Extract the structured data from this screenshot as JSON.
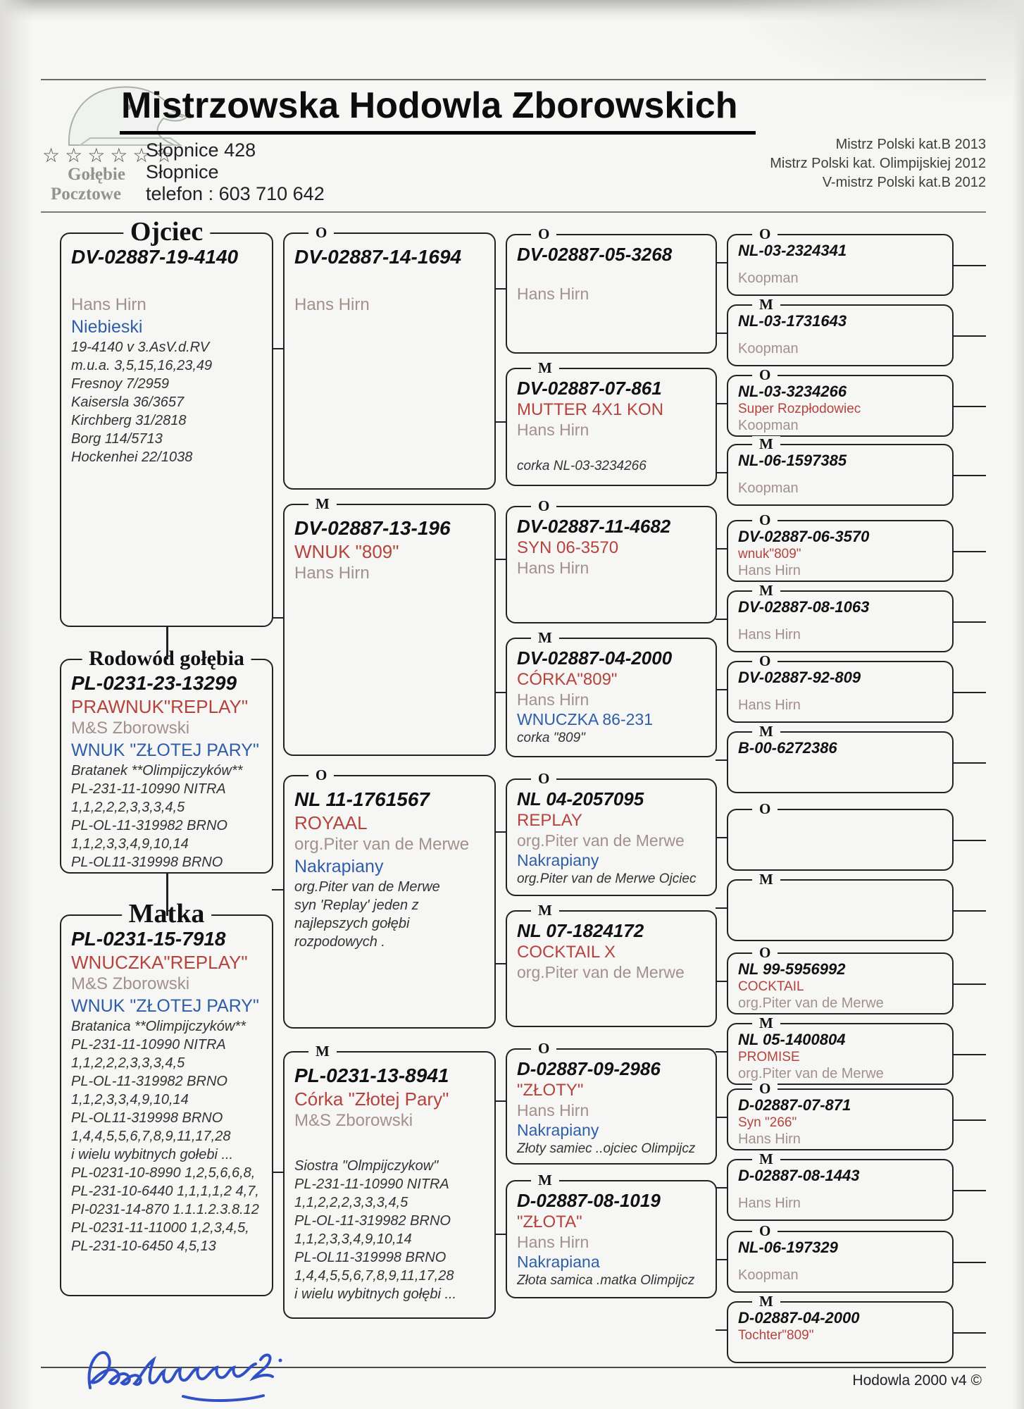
{
  "header": {
    "title": "Mistrzowska Hodowla Zborowskich",
    "logo_stars": "☆☆☆☆☆☆",
    "logo_label_line1": "Gołębie",
    "logo_label_line2": "Pocztowe",
    "address_line1": "Słopnice 428",
    "address_line2": "Słopnice",
    "phone": "telefon : 603 710 642",
    "achievements": [
      "Mistrz Polski kat.B 2013",
      "Mistrz Polski kat. Olimpijskiej 2012",
      "V-mistrz Polski kat.B 2012"
    ]
  },
  "footer": {
    "program_credit": "Hodowla 2000 v4 ©"
  },
  "colors": {
    "red_text": "#b5433d",
    "blue_text": "#2e5ea9",
    "name_text": "#a3908b",
    "signature_ink": "#3150c4"
  },
  "pedigree": {
    "columns": [
      {
        "boxes": [
          {
            "label": "Ojciec",
            "lines": [
              {
                "t": "DV-02887-19-4140",
                "s": "r"
              },
              {
                "t": "",
                "s": "g"
              },
              {
                "t": "Hans Hirn",
                "s": "n"
              },
              {
                "t": "Niebieski",
                "s": "b"
              },
              {
                "t": "19-4140 v 3.AsV.d.RV",
                "s": "i"
              },
              {
                "t": "m.u.a. 3,5,15,16,23,49",
                "s": "i"
              },
              {
                "t": "Fresnoy 7/2959",
                "s": "i"
              },
              {
                "t": "Kaisersla 36/3657",
                "s": "i"
              },
              {
                "t": "Kirchberg 31/2818",
                "s": "i"
              },
              {
                "t": "Borg 114/5713",
                "s": "i"
              },
              {
                "t": "Hockenhei 22/1038",
                "s": "i"
              }
            ]
          },
          {
            "label": "Rodowód gołębia",
            "lines": [
              {
                "t": "PL-0231-23-13299",
                "s": "r"
              },
              {
                "t": "PRAWNUK\"REPLAY\"",
                "s": "rd"
              },
              {
                "t": "M&S Zborowski",
                "s": "n"
              },
              {
                "t": "WNUK \"ZŁOTEJ PARY\"",
                "s": "b"
              },
              {
                "t": "Bratanek **Olimpijczyków**",
                "s": "i"
              },
              {
                "t": " PL-231-11-10990 NITRA",
                "s": "i"
              },
              {
                "t": "1,1,2,2,2,3,3,3,4,5",
                "s": "i"
              },
              {
                "t": "PL-OL-11-319982 BRNO",
                "s": "i"
              },
              {
                "t": "1,1,2,3,3,4,9,10,14",
                "s": "i"
              },
              {
                "t": "PL-OL11-319998 BRNO",
                "s": "i"
              }
            ]
          },
          {
            "label": "Matka",
            "lines": [
              {
                "t": "PL-0231-15-7918",
                "s": "r"
              },
              {
                "t": "WNUCZKA\"REPLAY\"",
                "s": "rd"
              },
              {
                "t": "M&S Zborowski",
                "s": "n"
              },
              {
                "t": "WNUK \"ZŁOTEJ PARY\"",
                "s": "b"
              },
              {
                "t": "Bratanica **Olimpijczyków**",
                "s": "i"
              },
              {
                "t": " PL-231-11-10990 NITRA",
                "s": "i"
              },
              {
                "t": "1,1,2,2,2,3,3,3,4,5",
                "s": "i"
              },
              {
                "t": "PL-OL-11-319982 BRNO",
                "s": "i"
              },
              {
                "t": "1,1,2,3,3,4,9,10,14",
                "s": "i"
              },
              {
                "t": "PL-OL11-319998 BRNO",
                "s": "i"
              },
              {
                "t": "1,4,4,5,5,6,7,8,9,11,17,28",
                "s": "i"
              },
              {
                "t": "i wielu wybitnych gołebi ...",
                "s": "i"
              },
              {
                "t": "PL-0231-10-8990 1,2,5,6,6,8,",
                "s": "i"
              },
              {
                "t": "PL-231-10-6440 1,1,1,1,2 4,7,",
                "s": "i"
              },
              {
                "t": "PI-0231-14-870 1.1.1.2.3.8.12",
                "s": "i"
              },
              {
                "t": "PL-0231-11-11000 1,2,3,4,5,",
                "s": "i"
              },
              {
                "t": "PL-231-10-6450 4,5,13",
                "s": "i"
              }
            ]
          }
        ]
      },
      {
        "boxes": [
          {
            "label": "O",
            "lines": [
              {
                "t": "DV-02887-14-1694",
                "s": "r"
              },
              {
                "t": "",
                "s": "g"
              },
              {
                "t": "Hans Hirn",
                "s": "n"
              }
            ]
          },
          {
            "label": "M",
            "lines": [
              {
                "t": "DV-02887-13-196",
                "s": "r"
              },
              {
                "t": "WNUK \"809\"",
                "s": "rd"
              },
              {
                "t": "Hans Hirn",
                "s": "n"
              }
            ]
          },
          {
            "label": "O",
            "lines": [
              {
                "t": "NL 11-1761567",
                "s": "r"
              },
              {
                "t": "ROYAAL",
                "s": "rd"
              },
              {
                "t": "org.Piter van  de Merwe",
                "s": "n"
              },
              {
                "t": "Nakrapiany",
                "s": "b"
              },
              {
                "t": "org.Piter van de Merwe",
                "s": "i"
              },
              {
                "t": "syn 'Replay' jeden z",
                "s": "i"
              },
              {
                "t": "najlepszych gołębi",
                "s": "i"
              },
              {
                "t": "rozpodowych .",
                "s": "i"
              }
            ]
          },
          {
            "label": "M",
            "lines": [
              {
                "t": "PL-0231-13-8941",
                "s": "r"
              },
              {
                "t": "Córka \"Złotej Pary\"",
                "s": "rd"
              },
              {
                "t": "M&S Zborowski",
                "s": "n"
              },
              {
                "t": "",
                "s": "g"
              },
              {
                "t": "Siostra \"Olmpijczykow\"",
                "s": "i"
              },
              {
                "t": " PL-231-11-10990 NITRA",
                "s": "i"
              },
              {
                "t": "1,1,2,2,2,3,3,3,4,5",
                "s": "i"
              },
              {
                "t": "PL-OL-11-319982 BRNO",
                "s": "i"
              },
              {
                "t": "1,1,2,3,3,4,9,10,14",
                "s": "i"
              },
              {
                "t": "PL-OL11-319998 BRNO",
                "s": "i"
              },
              {
                "t": "1,4,4,5,5,6,7,8,9,11,17,28",
                "s": "i"
              },
              {
                "t": "i wielu wybitnych gołębi ...",
                "s": "i"
              }
            ]
          }
        ]
      },
      {
        "boxes": [
          {
            "label": "O",
            "lines": [
              {
                "t": "DV-02887-05-3268",
                "s": "r"
              },
              {
                "t": "",
                "s": "g"
              },
              {
                "t": "Hans Hirn",
                "s": "n"
              }
            ]
          },
          {
            "label": "M",
            "lines": [
              {
                "t": "DV-02887-07-861",
                "s": "r"
              },
              {
                "t": "MUTTER 4X1 KON",
                "s": "rd"
              },
              {
                "t": "Hans Hirn",
                "s": "n"
              },
              {
                "t": "",
                "s": "g"
              },
              {
                "t": "corka NL-03-3234266",
                "s": "i"
              }
            ]
          },
          {
            "label": "O",
            "lines": [
              {
                "t": "DV-02887-11-4682",
                "s": "r"
              },
              {
                "t": "SYN 06-3570",
                "s": "rd"
              },
              {
                "t": "Hans Hirn",
                "s": "n"
              }
            ]
          },
          {
            "label": "M",
            "lines": [
              {
                "t": "DV-02887-04-2000",
                "s": "r"
              },
              {
                "t": "CÓRKA\"809\"",
                "s": "rd"
              },
              {
                "t": "Hans Hirn",
                "s": "n"
              },
              {
                "t": "WNUCZKA 86-231",
                "s": "b"
              },
              {
                "t": "corka \"809\"",
                "s": "i"
              }
            ]
          },
          {
            "label": "O",
            "lines": [
              {
                "t": "NL 04-2057095",
                "s": "r"
              },
              {
                "t": "REPLAY",
                "s": "rd"
              },
              {
                "t": "org.Piter van  de Merwe",
                "s": "n"
              },
              {
                "t": "Nakrapiany",
                "s": "b"
              },
              {
                "t": "org.Piter van de Merwe  Ojciec",
                "s": "i"
              }
            ]
          },
          {
            "label": "M",
            "lines": [
              {
                "t": "NL 07-1824172",
                "s": "r"
              },
              {
                "t": "COCKTAIL X",
                "s": "rd"
              },
              {
                "t": "org.Piter van  de Merwe",
                "s": "n"
              }
            ]
          },
          {
            "label": "O",
            "lines": [
              {
                "t": "D-02887-09-2986",
                "s": "r"
              },
              {
                "t": "\"ZŁOTY\"",
                "s": "rd"
              },
              {
                "t": "Hans Hirn",
                "s": "n"
              },
              {
                "t": "Nakrapiany",
                "s": "b"
              },
              {
                "t": "Złoty samiec ..ojciec Olimpijcz",
                "s": "i"
              }
            ]
          },
          {
            "label": "M",
            "lines": [
              {
                "t": "D-02887-08-1019",
                "s": "r"
              },
              {
                "t": "\"ZŁOTA\"",
                "s": "rd"
              },
              {
                "t": "Hans Hirn",
                "s": "n"
              },
              {
                "t": "Nakrapiana",
                "s": "b"
              },
              {
                "t": "Złota samica .matka Olimpijcz",
                "s": "i"
              }
            ]
          }
        ]
      },
      {
        "boxes": [
          {
            "label": "O",
            "lines": [
              {
                "t": "NL-03-2324341",
                "s": "r"
              },
              {
                "t": "",
                "s": "gs"
              },
              {
                "t": "Koopman",
                "s": "n"
              }
            ]
          },
          {
            "label": "M",
            "lines": [
              {
                "t": "NL-03-1731643",
                "s": "r"
              },
              {
                "t": "",
                "s": "gs"
              },
              {
                "t": "Koopman",
                "s": "n"
              }
            ]
          },
          {
            "label": "O",
            "lines": [
              {
                "t": "NL-03-3234266",
                "s": "r"
              },
              {
                "t": "Super Rozpłodowiec",
                "s": "rd"
              },
              {
                "t": "Koopman",
                "s": "n"
              }
            ]
          },
          {
            "label": "M",
            "lines": [
              {
                "t": "NL-06-1597385",
                "s": "r"
              },
              {
                "t": "",
                "s": "gs"
              },
              {
                "t": "Koopman",
                "s": "n"
              }
            ]
          },
          {
            "label": "O",
            "lines": [
              {
                "t": "DV-02887-06-3570",
                "s": "r"
              },
              {
                "t": "wnuk\"809\"",
                "s": "rd"
              },
              {
                "t": "Hans Hirn",
                "s": "n"
              }
            ]
          },
          {
            "label": "M",
            "lines": [
              {
                "t": "DV-02887-08-1063",
                "s": "r"
              },
              {
                "t": "",
                "s": "gs"
              },
              {
                "t": "Hans Hirn",
                "s": "n"
              }
            ]
          },
          {
            "label": "O",
            "lines": [
              {
                "t": "DV-02887-92-809",
                "s": "r"
              },
              {
                "t": "",
                "s": "gs"
              },
              {
                "t": "Hans Hirn",
                "s": "n"
              }
            ]
          },
          {
            "label": "M",
            "lines": [
              {
                "t": "B-00-6272386",
                "s": "r"
              }
            ]
          },
          {
            "label": "O",
            "lines": []
          },
          {
            "label": "M",
            "lines": []
          },
          {
            "label": "O",
            "lines": [
              {
                "t": "NL 99-5956992",
                "s": "r"
              },
              {
                "t": "COCKTAIL",
                "s": "rd"
              },
              {
                "t": "org.Piter van  de Merwe",
                "s": "n"
              }
            ]
          },
          {
            "label": "M",
            "lines": [
              {
                "t": "NL 05-1400804",
                "s": "r"
              },
              {
                "t": "PROMISE",
                "s": "rd"
              },
              {
                "t": "org.Piter van  de Merwe",
                "s": "n"
              }
            ]
          },
          {
            "label": "O",
            "lines": [
              {
                "t": "D-02887-07-871",
                "s": "r"
              },
              {
                "t": "Syn \"266\"",
                "s": "rd"
              },
              {
                "t": "Hans Hirn",
                "s": "n"
              }
            ]
          },
          {
            "label": "M",
            "lines": [
              {
                "t": "D-02887-08-1443",
                "s": "r"
              },
              {
                "t": "",
                "s": "gs"
              },
              {
                "t": "Hans Hirn",
                "s": "n"
              }
            ]
          },
          {
            "label": "O",
            "lines": [
              {
                "t": "NL-06-197329",
                "s": "r"
              },
              {
                "t": "",
                "s": "gs"
              },
              {
                "t": "Koopman",
                "s": "n"
              }
            ]
          },
          {
            "label": "M",
            "lines": [
              {
                "t": "D-02887-04-2000",
                "s": "r"
              },
              {
                "t": "Tochter\"809\"",
                "s": "rd"
              }
            ]
          }
        ]
      }
    ]
  }
}
